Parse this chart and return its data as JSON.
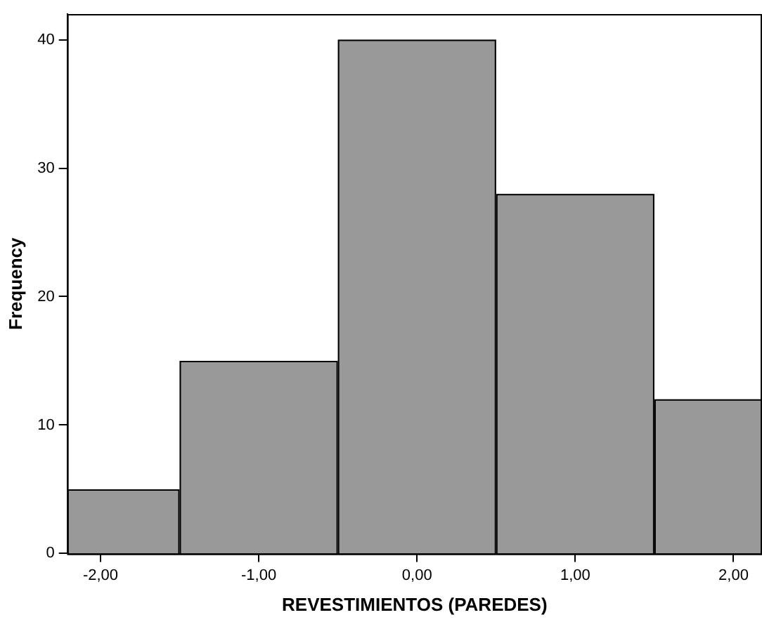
{
  "chart_data": {
    "type": "histogram",
    "xlabel": "REVESTIMIENTOS (PAREDES)",
    "ylabel": "Frequency",
    "bins": [
      -2.21,
      -1.5,
      -0.5,
      0.5,
      1.5,
      2.18
    ],
    "values": [
      5,
      15,
      40,
      28,
      12
    ],
    "color": "#999999",
    "xlim": [
      -2.21,
      2.18
    ],
    "xticks": [
      {
        "value": -2,
        "label": "-2,00"
      },
      {
        "value": -1,
        "label": "-1,00"
      },
      {
        "value": 0,
        "label": "0,00"
      },
      {
        "value": 1,
        "label": "1,00"
      },
      {
        "value": 2,
        "label": "2,00"
      }
    ],
    "ylim": [
      0,
      42
    ],
    "yticks": [
      0,
      10,
      20,
      30,
      40
    ],
    "grid": false,
    "legend": false
  }
}
